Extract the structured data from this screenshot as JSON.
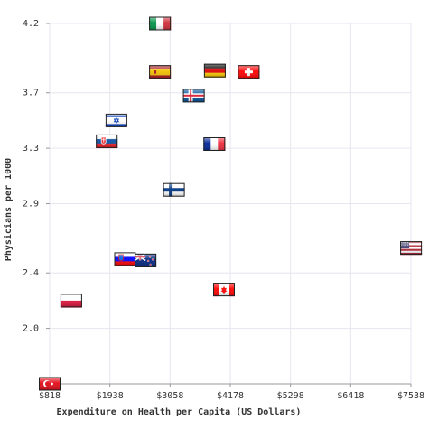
{
  "chart_data": {
    "type": "scatter",
    "title": "",
    "xlabel": "Expenditure on Health per Capita (US Dollars)",
    "ylabel": "Physicians per 1000",
    "xlim": [
      818,
      7538
    ],
    "ylim": [
      1.6,
      4.2
    ],
    "x_ticks": [
      "$818",
      "$1938",
      "$3058",
      "$4178",
      "$5298",
      "$6418",
      "$7538"
    ],
    "y_ticks": [
      "2.0",
      "2.4",
      "2.9",
      "3.3",
      "3.7",
      "4.2"
    ],
    "grid": true,
    "legend": "none",
    "points": [
      {
        "flag": "turkey",
        "x": 818,
        "y": 1.6
      },
      {
        "flag": "poland",
        "x": 1220,
        "y": 2.2
      },
      {
        "flag": "slovakia",
        "x": 1880,
        "y": 3.35
      },
      {
        "flag": "israel",
        "x": 2060,
        "y": 3.5
      },
      {
        "flag": "slovenia",
        "x": 2220,
        "y": 2.5
      },
      {
        "flag": "new-zealand",
        "x": 2600,
        "y": 2.49
      },
      {
        "flag": "italy",
        "x": 2870,
        "y": 4.2
      },
      {
        "flag": "spain",
        "x": 2870,
        "y": 3.85
      },
      {
        "flag": "finland",
        "x": 3130,
        "y": 3.0
      },
      {
        "flag": "iceland",
        "x": 3500,
        "y": 3.68
      },
      {
        "flag": "france",
        "x": 3880,
        "y": 3.33
      },
      {
        "flag": "germany",
        "x": 3890,
        "y": 3.86
      },
      {
        "flag": "canada",
        "x": 4060,
        "y": 2.28
      },
      {
        "flag": "switzerland",
        "x": 4520,
        "y": 3.85
      },
      {
        "flag": "usa",
        "x": 7540,
        "y": 2.58
      }
    ]
  },
  "colors": {
    "grid": "#e6e6f0",
    "axis": "#999999",
    "text": "#333333"
  }
}
